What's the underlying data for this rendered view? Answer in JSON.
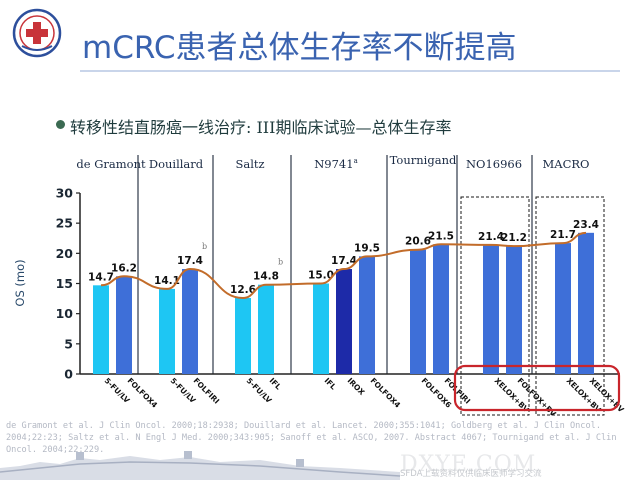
{
  "header": {
    "title": "mCRC患者总体生存率不断提高",
    "subtitle": "转移性结直肠癌一线治疗: III期临床试验—总体生存率"
  },
  "colors": {
    "light_bar": "#1ec6f3",
    "mid_bar": "#3e6fd8",
    "dark_bar": "#1d2aa8",
    "line": "#c26c2a",
    "highlight_box": "#c9252b",
    "dashed_box": "#1a1a1a"
  },
  "group_labels": [
    {
      "label": "de Gramont",
      "sup": ""
    },
    {
      "label": "Douillard",
      "sup": ""
    },
    {
      "label": "Saltz",
      "sup": ""
    },
    {
      "label": "N9741",
      "sup": "a"
    },
    {
      "label": "Tournigand",
      "sup": ""
    },
    {
      "label": "NO16966",
      "sup": ""
    },
    {
      "label": "MACRO",
      "sup": ""
    }
  ],
  "chart_data": {
    "type": "bar",
    "title": "",
    "xlabel": "",
    "ylabel": "OS (mo)",
    "ylim": [
      0,
      30
    ],
    "yticks": [
      "0",
      "5",
      "10",
      "15",
      "20",
      "25",
      "30"
    ],
    "grid": false,
    "categories": [
      "5-FU/LV",
      "FOLFOX4",
      "5-FU/LV",
      "FOLFIRI",
      "5-FU/LV",
      "IFL",
      "IFL",
      "IROX",
      "FOLFOX4",
      "FOLFOX6",
      "FOLFIRI",
      "XELOX+BV",
      "FOLFOX+BV",
      "XELOX+BV",
      "XELOX+BV"
    ],
    "groups": [
      {
        "name": "de Gramont",
        "bars": [
          0,
          1
        ]
      },
      {
        "name": "Douillard",
        "bars": [
          2,
          3
        ]
      },
      {
        "name": "Saltz",
        "bars": [
          4,
          5
        ]
      },
      {
        "name": "N9741",
        "bars": [
          6,
          7,
          8
        ]
      },
      {
        "name": "Tournigand",
        "bars": [
          9,
          10
        ]
      },
      {
        "name": "NO16966",
        "bars": [
          11,
          12
        ]
      },
      {
        "name": "MACRO",
        "bars": [
          13,
          14
        ]
      }
    ],
    "values": [
      14.7,
      16.2,
      14.1,
      17.4,
      12.6,
      14.8,
      15.0,
      17.4,
      19.5,
      20.6,
      21.5,
      21.4,
      21.2,
      21.7,
      23.4
    ],
    "value_labels": [
      "14.7",
      "16.2",
      "14.1",
      "17.4",
      "12.6",
      "14.8",
      "15.0",
      "17.4",
      "19.5",
      "20.6",
      "21.5",
      "21.4",
      "21.2",
      "21.7",
      "23.4"
    ],
    "bar_colors": [
      "light",
      "mid",
      "light",
      "mid",
      "light",
      "light",
      "light",
      "dark",
      "mid",
      "mid",
      "mid",
      "mid",
      "mid",
      "mid",
      "mid"
    ],
    "annotations": [
      {
        "text": "b",
        "bar": 3
      },
      {
        "text": "b",
        "bar": 5
      }
    ],
    "trend_line": true,
    "highlight": "NO16966 and MACRO bars boxed"
  },
  "footer": {
    "lines": [
      "de Gramont et al. J Clin Oncol. 2000;18:2938; Douillard et al. Lancet. 2000;355:1041; Goldberg et al. J Clin Oncol.",
      "2004;22:23; Saltz et al. N Engl J Med. 2000;343:905; Sanoff et al. ASCO, 2007. Abstract 4067; Tournigand et al. J Clin",
      "Oncol. 2004;22:229."
    ]
  },
  "watermark": {
    "brand": "DXYE.COM",
    "caption": "SFDA上载资料仅供临床医师学习交流"
  }
}
